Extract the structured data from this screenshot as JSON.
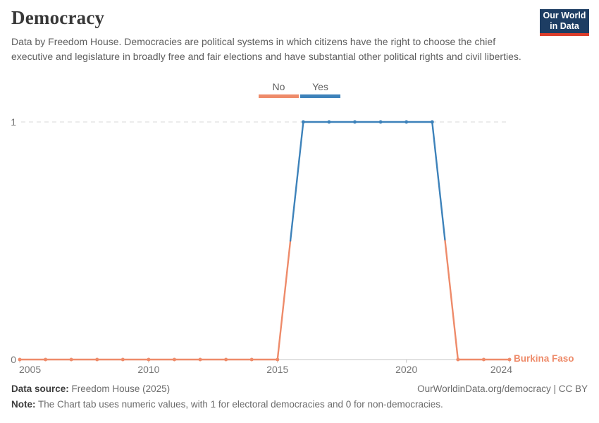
{
  "header": {
    "title": "Democracy",
    "subtitle": "Data by Freedom House. Democracies are political systems in which citizens have the right to choose the chief executive and legislature in broadly free and fair elections and have substantial other political rights and civil liberties.",
    "logo": {
      "line1": "Our World",
      "line2": "in Data"
    }
  },
  "legend": {
    "items": [
      {
        "label": "No",
        "value": 0,
        "color": "#ee8b6a"
      },
      {
        "label": "Yes",
        "value": 1,
        "color": "#3d82ba"
      }
    ]
  },
  "chart_data": {
    "type": "line",
    "title": "Democracy",
    "entity_label": "Burkina Faso",
    "x": [
      2005,
      2006,
      2007,
      2008,
      2009,
      2010,
      2011,
      2012,
      2013,
      2014,
      2015,
      2016,
      2017,
      2018,
      2019,
      2020,
      2021,
      2022,
      2023,
      2024
    ],
    "values": [
      0,
      0,
      0,
      0,
      0,
      0,
      0,
      0,
      0,
      0,
      0,
      1,
      1,
      1,
      1,
      1,
      1,
      0,
      0,
      0
    ],
    "series": [
      {
        "name": "Burkina Faso",
        "values": [
          0,
          0,
          0,
          0,
          0,
          0,
          0,
          0,
          0,
          0,
          0,
          1,
          1,
          1,
          1,
          1,
          1,
          0,
          0,
          0
        ]
      }
    ],
    "xlim": [
      2005,
      2024
    ],
    "ylim": [
      0,
      1
    ],
    "x_ticks": [
      2005,
      2010,
      2015,
      2020,
      2024
    ],
    "y_ticks": [
      0,
      1
    ],
    "grid": "dashed horizontal gridline at y=1, solid axis at y=0",
    "legend_position": "top-center",
    "category_colors": {
      "0": "#ee8b6a",
      "1": "#3d82ba"
    },
    "category_labels": {
      "0": "No",
      "1": "Yes"
    }
  },
  "footer": {
    "source_label": "Data source:",
    "source_text": "Freedom House (2025)",
    "note_label": "Note:",
    "note_text": "The Chart tab uses numeric values, with 1 for electoral democracies and 0 for non-democracies.",
    "rights": "OurWorldinData.org/democracy | CC BY"
  }
}
